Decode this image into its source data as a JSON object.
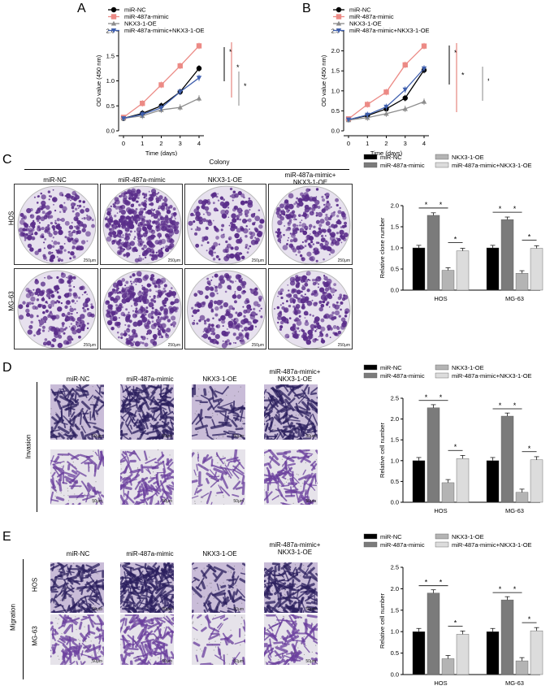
{
  "panels": {
    "A": "A",
    "B": "B",
    "C": "C",
    "D": "D",
    "E": "E"
  },
  "colors": {
    "miR_NC": "#000000",
    "miR_487a_mimic": "#ec8a85",
    "NKX3_1_OE": "#8c8c8c",
    "combo": "#3f5fae",
    "bar_black": "#000000",
    "bar_darkgray": "#7b7b7b",
    "bar_lightgray": "#b4b4b4",
    "bar_palegray": "#dcdcdc",
    "stain_bg": "#d9cfe3",
    "stain_dark": "#5a2d8a"
  },
  "groups": [
    "miR-NC",
    "miR-487a-mimic",
    "NKX3-1-OE",
    "miR-487a-mimic+NKX3-1-OE"
  ],
  "groups_wrapped": {
    "line1": "miR-487a-mimic+",
    "line2": "NKX3-1-OE"
  },
  "colony": {
    "header": "Colony",
    "rows": [
      "HOS",
      "MG-63"
    ],
    "scale": "250μm"
  },
  "invasion": {
    "label": "Invasion",
    "scale": "50μm"
  },
  "migration": {
    "label": "Migration",
    "rows": [
      "HOS",
      "MG-63"
    ],
    "scale": "50μm"
  },
  "sig": "*",
  "chart_data": [
    {
      "type": "line",
      "panel": "A",
      "xlabel": "Time (days)",
      "ylabel": "OD value (450 nm)",
      "x": [
        0,
        1,
        2,
        3,
        4
      ],
      "xlim": [
        0,
        4
      ],
      "ylim": [
        0,
        2.0
      ],
      "yticks": [
        "0.0",
        "0.5",
        "1.0",
        "1.5",
        "2.0"
      ],
      "xticks": [
        "0",
        "1",
        "2",
        "3",
        "4"
      ],
      "legend": "top-left",
      "series": [
        {
          "name": "miR-NC",
          "marker": "circle",
          "values": [
            0.25,
            0.35,
            0.5,
            0.78,
            1.25
          ]
        },
        {
          "name": "miR-487a-mimic",
          "marker": "square",
          "values": [
            0.27,
            0.55,
            0.92,
            1.3,
            1.7
          ]
        },
        {
          "name": "NKX3-1-OE",
          "marker": "triangle",
          "values": [
            0.25,
            0.3,
            0.42,
            0.47,
            0.65
          ]
        },
        {
          "name": "miR-487a-mimic+NKX3-1-OE",
          "marker": "triangle-down",
          "values": [
            0.25,
            0.33,
            0.46,
            0.78,
            1.06
          ]
        }
      ]
    },
    {
      "type": "line",
      "panel": "B",
      "xlabel": "Time (days)",
      "ylabel": "OD value (450 nm)",
      "x": [
        0,
        1,
        2,
        3,
        4
      ],
      "xlim": [
        0,
        4
      ],
      "ylim": [
        0,
        2.5
      ],
      "yticks": [
        "0.0",
        "0.5",
        "1.0",
        "1.5",
        "2.0",
        "2.5"
      ],
      "xticks": [
        "0",
        "1",
        "2",
        "3",
        "4"
      ],
      "legend": "top-left",
      "series": [
        {
          "name": "miR-NC",
          "marker": "circle",
          "values": [
            0.28,
            0.38,
            0.55,
            0.82,
            1.52
          ]
        },
        {
          "name": "miR-487a-mimic",
          "marker": "square",
          "values": [
            0.3,
            0.66,
            0.97,
            1.65,
            2.12
          ]
        },
        {
          "name": "NKX3-1-OE",
          "marker": "triangle",
          "values": [
            0.27,
            0.33,
            0.43,
            0.55,
            0.73
          ]
        },
        {
          "name": "miR-487a-mimic+NKX3-1-OE",
          "marker": "triangle-down",
          "values": [
            0.28,
            0.4,
            0.6,
            1.03,
            1.56
          ]
        }
      ]
    },
    {
      "type": "bar",
      "panel": "C",
      "ylabel": "Relative clone number",
      "categories": [
        "HOS",
        "MG-63"
      ],
      "ylim": [
        0,
        2.0
      ],
      "yticks": [
        "0.0",
        "0.5",
        "1.0",
        "1.5",
        "2.0"
      ],
      "legend": "top",
      "series": [
        {
          "name": "miR-NC",
          "values": [
            1.0,
            1.0
          ]
        },
        {
          "name": "miR-487a-mimic",
          "values": [
            1.77,
            1.67
          ]
        },
        {
          "name": "NKX3-1-OE",
          "values": [
            0.47,
            0.4
          ]
        },
        {
          "name": "miR-487a-mimic+NKX3-1-OE",
          "values": [
            0.93,
            0.99
          ]
        }
      ]
    },
    {
      "type": "bar",
      "panel": "D",
      "ylabel": "Relative cell number",
      "categories": [
        "HOS",
        "MG-63"
      ],
      "ylim": [
        0,
        2.5
      ],
      "yticks": [
        "0.0",
        "0.5",
        "1.0",
        "1.5",
        "2.0",
        "2.5"
      ],
      "legend": "top",
      "series": [
        {
          "name": "miR-NC",
          "values": [
            1.0,
            1.0
          ]
        },
        {
          "name": "miR-487a-mimic",
          "values": [
            2.27,
            2.07
          ]
        },
        {
          "name": "NKX3-1-OE",
          "values": [
            0.47,
            0.24
          ]
        },
        {
          "name": "miR-487a-mimic+NKX3-1-OE",
          "values": [
            1.05,
            1.02
          ]
        }
      ]
    },
    {
      "type": "bar",
      "panel": "E",
      "ylabel": "Relative cell number",
      "categories": [
        "HOS",
        "MG-63"
      ],
      "ylim": [
        0,
        2.5
      ],
      "yticks": [
        "0.0",
        "0.5",
        "1.0",
        "1.5",
        "2.0",
        "2.5"
      ],
      "legend": "top",
      "series": [
        {
          "name": "miR-NC",
          "values": [
            1.0,
            1.0
          ]
        },
        {
          "name": "miR-487a-mimic",
          "values": [
            1.9,
            1.74
          ]
        },
        {
          "name": "NKX3-1-OE",
          "values": [
            0.37,
            0.32
          ]
        },
        {
          "name": "miR-487a-mimic+NKX3-1-OE",
          "values": [
            0.94,
            1.02
          ]
        }
      ]
    }
  ]
}
